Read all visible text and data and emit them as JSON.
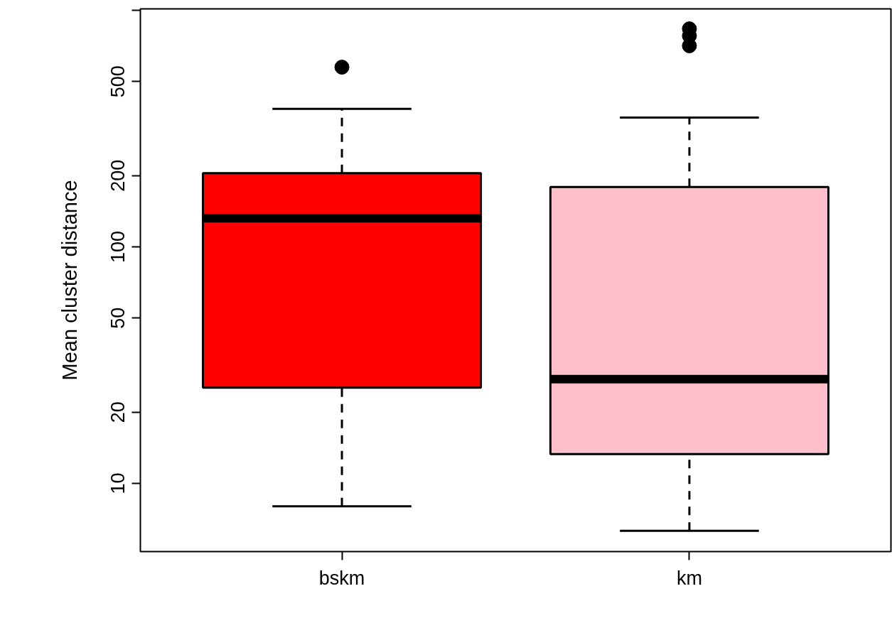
{
  "chart_data": {
    "type": "box",
    "ylabel": "Mean cluster distance",
    "categories": [
      "bskm",
      "km"
    ],
    "colors": [
      "#ff0000",
      "#ffc0cb"
    ],
    "boxes": [
      {
        "low": 8.0,
        "q1": 25.4,
        "median": 132,
        "q3": 205,
        "high": 383,
        "outliers": [
          575
        ]
      },
      {
        "low": 6.3,
        "q1": 13.3,
        "median": 27.6,
        "q3": 179,
        "high": 352,
        "outliers": [
          835,
          780,
          708
        ]
      }
    ],
    "log": "y",
    "ylim": [
      5.15,
      1014
    ],
    "yticks": [
      10,
      20,
      50,
      100,
      200,
      500,
      {
        "value": 1000,
        "label": null
      }
    ],
    "grid": false
  }
}
